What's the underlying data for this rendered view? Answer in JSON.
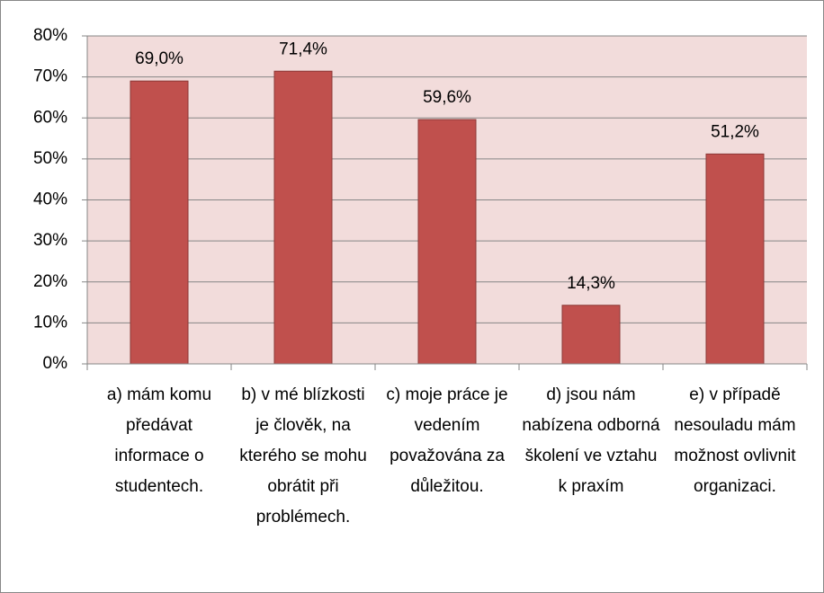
{
  "chart_data": {
    "type": "bar",
    "categories": [
      "a) mám komu předávat informace o studentech.",
      "b) v mé blízkosti je člověk, na kterého se mohu obrátit při problémech.",
      "c) moje práce je vedením považována za důležitou.",
      "d) jsou nám nabízena odborná školení ve vztahu k praxím",
      "e) v případě nesouladu mám možnost ovlivnit organizaci."
    ],
    "values": [
      69.0,
      71.4,
      59.6,
      14.3,
      51.2
    ],
    "value_labels": [
      "69,0%",
      "71,4%",
      "59,6%",
      "14,3%",
      "51,2%"
    ],
    "color": "#c0504d",
    "ylim": [
      0,
      80
    ],
    "yticks": [
      {
        "value": 0,
        "label": "0%"
      },
      {
        "value": 10,
        "label": "10%"
      },
      {
        "value": 20,
        "label": "20%"
      },
      {
        "value": 30,
        "label": "30%"
      },
      {
        "value": 40,
        "label": "40%"
      },
      {
        "value": 50,
        "label": "50%"
      },
      {
        "value": 60,
        "label": "60%"
      },
      {
        "value": 70,
        "label": "70%"
      },
      {
        "value": 80,
        "label": "80%"
      }
    ],
    "grid": true
  }
}
